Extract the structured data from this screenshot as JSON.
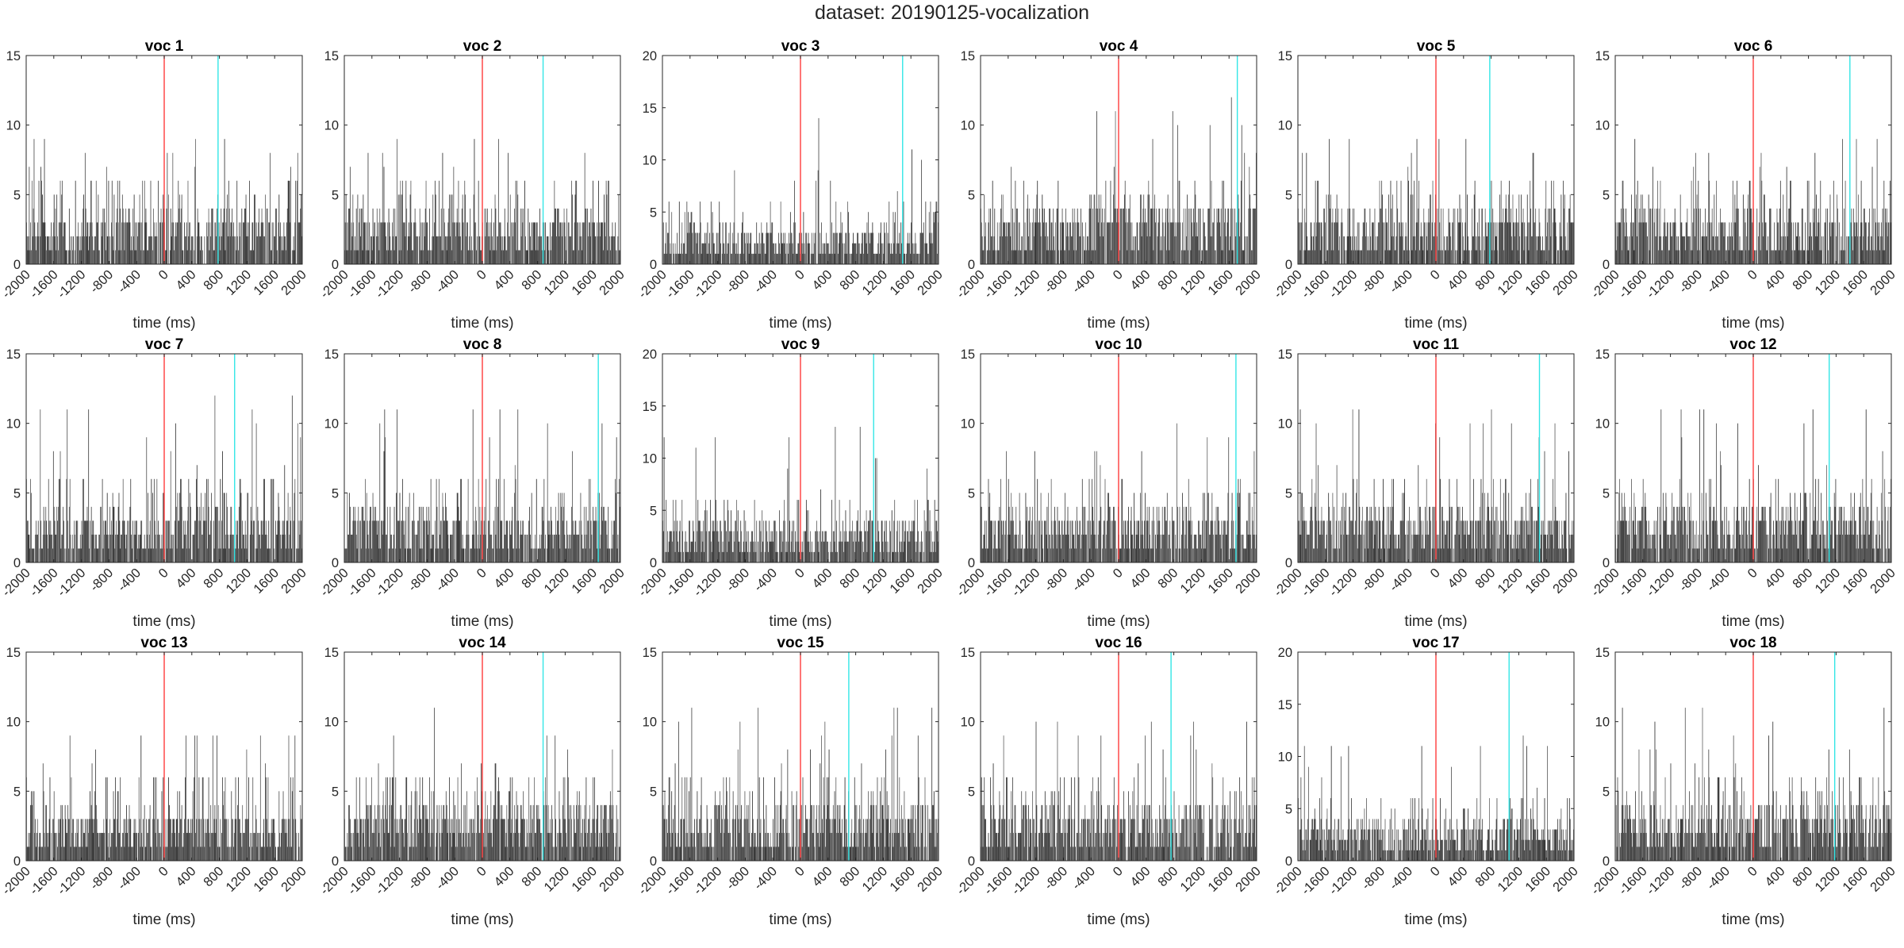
{
  "figure": {
    "title": "dataset: 20190125-vocalization"
  },
  "colors": {
    "bars": "#1f1f1f",
    "onset_line": "#ff3b3b",
    "offset_line": "#33e6e6",
    "axis": "#262626"
  },
  "chart_data": [
    {
      "type": "bar",
      "title": "voc 1",
      "xlabel": "time (ms)",
      "ylabel": "",
      "xlim": [
        -2000,
        2000
      ],
      "ylim": [
        0,
        15
      ],
      "yticks": [
        0,
        5,
        10,
        15
      ],
      "xticks": [
        -2000,
        -1600,
        -1200,
        -800,
        -400,
        0,
        400,
        800,
        1200,
        1600,
        2000
      ],
      "onset_ms": 0,
      "offset_ms": 780,
      "bin_ms": 10,
      "mean_count": 2.4,
      "max_count": 9
    },
    {
      "type": "bar",
      "title": "voc 2",
      "xlabel": "time (ms)",
      "ylabel": "",
      "xlim": [
        -2000,
        2000
      ],
      "ylim": [
        0,
        15
      ],
      "yticks": [
        0,
        5,
        10,
        15
      ],
      "xticks": [
        -2000,
        -1600,
        -1200,
        -800,
        -400,
        0,
        400,
        800,
        1200,
        1600,
        2000
      ],
      "onset_ms": 0,
      "offset_ms": 880,
      "bin_ms": 10,
      "mean_count": 2.4,
      "max_count": 9
    },
    {
      "type": "bar",
      "title": "voc 3",
      "xlabel": "time (ms)",
      "ylabel": "",
      "xlim": [
        -2000,
        2000
      ],
      "ylim": [
        0,
        20
      ],
      "yticks": [
        0,
        5,
        10,
        15,
        20
      ],
      "xticks": [
        -2000,
        -1600,
        -1200,
        -800,
        -400,
        0,
        400,
        800,
        1200,
        1600,
        2000
      ],
      "onset_ms": 0,
      "offset_ms": 1480,
      "bin_ms": 10,
      "mean_count": 2.3,
      "max_count": 14
    },
    {
      "type": "bar",
      "title": "voc 4",
      "xlabel": "time (ms)",
      "ylabel": "",
      "xlim": [
        -2000,
        2000
      ],
      "ylim": [
        0,
        15
      ],
      "yticks": [
        0,
        5,
        10,
        15
      ],
      "xticks": [
        -2000,
        -1600,
        -1200,
        -800,
        -400,
        0,
        400,
        800,
        1200,
        1600,
        2000
      ],
      "onset_ms": 0,
      "offset_ms": 1720,
      "bin_ms": 10,
      "mean_count": 2.8,
      "max_count": 12
    },
    {
      "type": "bar",
      "title": "voc 5",
      "xlabel": "time (ms)",
      "ylabel": "",
      "xlim": [
        -2000,
        2000
      ],
      "ylim": [
        0,
        15
      ],
      "yticks": [
        0,
        5,
        10,
        15
      ],
      "xticks": [
        -2000,
        -1600,
        -1200,
        -800,
        -400,
        0,
        400,
        800,
        1200,
        1600,
        2000
      ],
      "onset_ms": 0,
      "offset_ms": 780,
      "bin_ms": 10,
      "mean_count": 2.5,
      "max_count": 9
    },
    {
      "type": "bar",
      "title": "voc 6",
      "xlabel": "time (ms)",
      "ylabel": "",
      "xlim": [
        -2000,
        2000
      ],
      "ylim": [
        0,
        15
      ],
      "yticks": [
        0,
        5,
        10,
        15
      ],
      "xticks": [
        -2000,
        -1600,
        -1200,
        -800,
        -400,
        0,
        400,
        800,
        1200,
        1600,
        2000
      ],
      "onset_ms": 0,
      "offset_ms": 1400,
      "bin_ms": 10,
      "mean_count": 2.5,
      "max_count": 9
    },
    {
      "type": "bar",
      "title": "voc 7",
      "xlabel": "time (ms)",
      "ylabel": "",
      "xlim": [
        -2000,
        2000
      ],
      "ylim": [
        0,
        15
      ],
      "yticks": [
        0,
        5,
        10,
        15
      ],
      "xticks": [
        -2000,
        -1600,
        -1200,
        -800,
        -400,
        0,
        400,
        800,
        1200,
        1600,
        2000
      ],
      "onset_ms": 0,
      "offset_ms": 1020,
      "bin_ms": 10,
      "mean_count": 2.3,
      "max_count": 12
    },
    {
      "type": "bar",
      "title": "voc 8",
      "xlabel": "time (ms)",
      "ylabel": "",
      "xlim": [
        -2000,
        2000
      ],
      "ylim": [
        0,
        15
      ],
      "yticks": [
        0,
        5,
        10,
        15
      ],
      "xticks": [
        -2000,
        -1600,
        -1200,
        -800,
        -400,
        0,
        400,
        800,
        1200,
        1600,
        2000
      ],
      "onset_ms": 0,
      "offset_ms": 1680,
      "bin_ms": 10,
      "mean_count": 2.4,
      "max_count": 11
    },
    {
      "type": "bar",
      "title": "voc 9",
      "xlabel": "time (ms)",
      "ylabel": "",
      "xlim": [
        -2000,
        2000
      ],
      "ylim": [
        0,
        20
      ],
      "yticks": [
        0,
        5,
        10,
        15,
        20
      ],
      "xticks": [
        -2000,
        -1600,
        -1200,
        -800,
        -400,
        0,
        400,
        800,
        1200,
        1600,
        2000
      ],
      "onset_ms": 0,
      "offset_ms": 1060,
      "bin_ms": 10,
      "mean_count": 2.5,
      "max_count": 13
    },
    {
      "type": "bar",
      "title": "voc 10",
      "xlabel": "time (ms)",
      "ylabel": "",
      "xlim": [
        -2000,
        2000
      ],
      "ylim": [
        0,
        15
      ],
      "yticks": [
        0,
        5,
        10,
        15
      ],
      "xticks": [
        -2000,
        -1600,
        -1200,
        -800,
        -400,
        0,
        400,
        800,
        1200,
        1600,
        2000
      ],
      "onset_ms": 0,
      "offset_ms": 1700,
      "bin_ms": 10,
      "mean_count": 2.4,
      "max_count": 10
    },
    {
      "type": "bar",
      "title": "voc 11",
      "xlabel": "time (ms)",
      "ylabel": "",
      "xlim": [
        -2000,
        2000
      ],
      "ylim": [
        0,
        15
      ],
      "yticks": [
        0,
        5,
        10,
        15
      ],
      "xticks": [
        -2000,
        -1600,
        -1200,
        -800,
        -400,
        0,
        400,
        800,
        1200,
        1600,
        2000
      ],
      "onset_ms": 0,
      "offset_ms": 1500,
      "bin_ms": 10,
      "mean_count": 2.4,
      "max_count": 11
    },
    {
      "type": "bar",
      "title": "voc 12",
      "xlabel": "time (ms)",
      "ylabel": "",
      "xlim": [
        -2000,
        2000
      ],
      "ylim": [
        0,
        15
      ],
      "yticks": [
        0,
        5,
        10,
        15
      ],
      "xticks": [
        -2000,
        -1600,
        -1200,
        -800,
        -400,
        0,
        400,
        800,
        1200,
        1600,
        2000
      ],
      "onset_ms": 0,
      "offset_ms": 1100,
      "bin_ms": 10,
      "mean_count": 2.6,
      "max_count": 11
    },
    {
      "type": "bar",
      "title": "voc 13",
      "xlabel": "time (ms)",
      "ylabel": "",
      "xlim": [
        -2000,
        2000
      ],
      "ylim": [
        0,
        15
      ],
      "yticks": [
        0,
        5,
        10,
        15
      ],
      "xticks": [
        -2000,
        -1600,
        -1200,
        -800,
        -400,
        0,
        400,
        800,
        1200,
        1600,
        2000
      ],
      "onset_ms": 0,
      "offset_ms": null,
      "bin_ms": 10,
      "mean_count": 2.1,
      "max_count": 9
    },
    {
      "type": "bar",
      "title": "voc 14",
      "xlabel": "time (ms)",
      "ylabel": "",
      "xlim": [
        -2000,
        2000
      ],
      "ylim": [
        0,
        15
      ],
      "yticks": [
        0,
        5,
        10,
        15
      ],
      "xticks": [
        -2000,
        -1600,
        -1200,
        -800,
        -400,
        0,
        400,
        800,
        1200,
        1600,
        2000
      ],
      "onset_ms": 0,
      "offset_ms": 880,
      "bin_ms": 10,
      "mean_count": 2.6,
      "max_count": 11
    },
    {
      "type": "bar",
      "title": "voc 15",
      "xlabel": "time (ms)",
      "ylabel": "",
      "xlim": [
        -2000,
        2000
      ],
      "ylim": [
        0,
        15
      ],
      "yticks": [
        0,
        5,
        10,
        15
      ],
      "xticks": [
        -2000,
        -1600,
        -1200,
        -800,
        -400,
        0,
        400,
        800,
        1200,
        1600,
        2000
      ],
      "onset_ms": 0,
      "offset_ms": 700,
      "bin_ms": 10,
      "mean_count": 2.5,
      "max_count": 11
    },
    {
      "type": "bar",
      "title": "voc 16",
      "xlabel": "time (ms)",
      "ylabel": "",
      "xlim": [
        -2000,
        2000
      ],
      "ylim": [
        0,
        15
      ],
      "yticks": [
        0,
        5,
        10,
        15
      ],
      "xticks": [
        -2000,
        -1600,
        -1200,
        -800,
        -400,
        0,
        400,
        800,
        1200,
        1600,
        2000
      ],
      "onset_ms": 0,
      "offset_ms": 760,
      "bin_ms": 10,
      "mean_count": 2.5,
      "max_count": 10
    },
    {
      "type": "bar",
      "title": "voc 17",
      "xlabel": "time (ms)",
      "ylabel": "",
      "xlim": [
        -2000,
        2000
      ],
      "ylim": [
        0,
        20
      ],
      "yticks": [
        0,
        5,
        10,
        15,
        20
      ],
      "xticks": [
        -2000,
        -1600,
        -1200,
        -800,
        -400,
        0,
        400,
        800,
        1200,
        1600,
        2000
      ],
      "onset_ms": 0,
      "offset_ms": 1060,
      "bin_ms": 10,
      "mean_count": 2.6,
      "max_count": 12
    },
    {
      "type": "bar",
      "title": "voc 18",
      "xlabel": "time (ms)",
      "ylabel": "",
      "xlim": [
        -2000,
        2000
      ],
      "ylim": [
        0,
        15
      ],
      "yticks": [
        0,
        5,
        10,
        15
      ],
      "xticks": [
        -2000,
        -1600,
        -1200,
        -800,
        -400,
        0,
        400,
        800,
        1200,
        1600,
        2000
      ],
      "onset_ms": 0,
      "offset_ms": 1180,
      "bin_ms": 10,
      "mean_count": 2.5,
      "max_count": 11
    }
  ]
}
